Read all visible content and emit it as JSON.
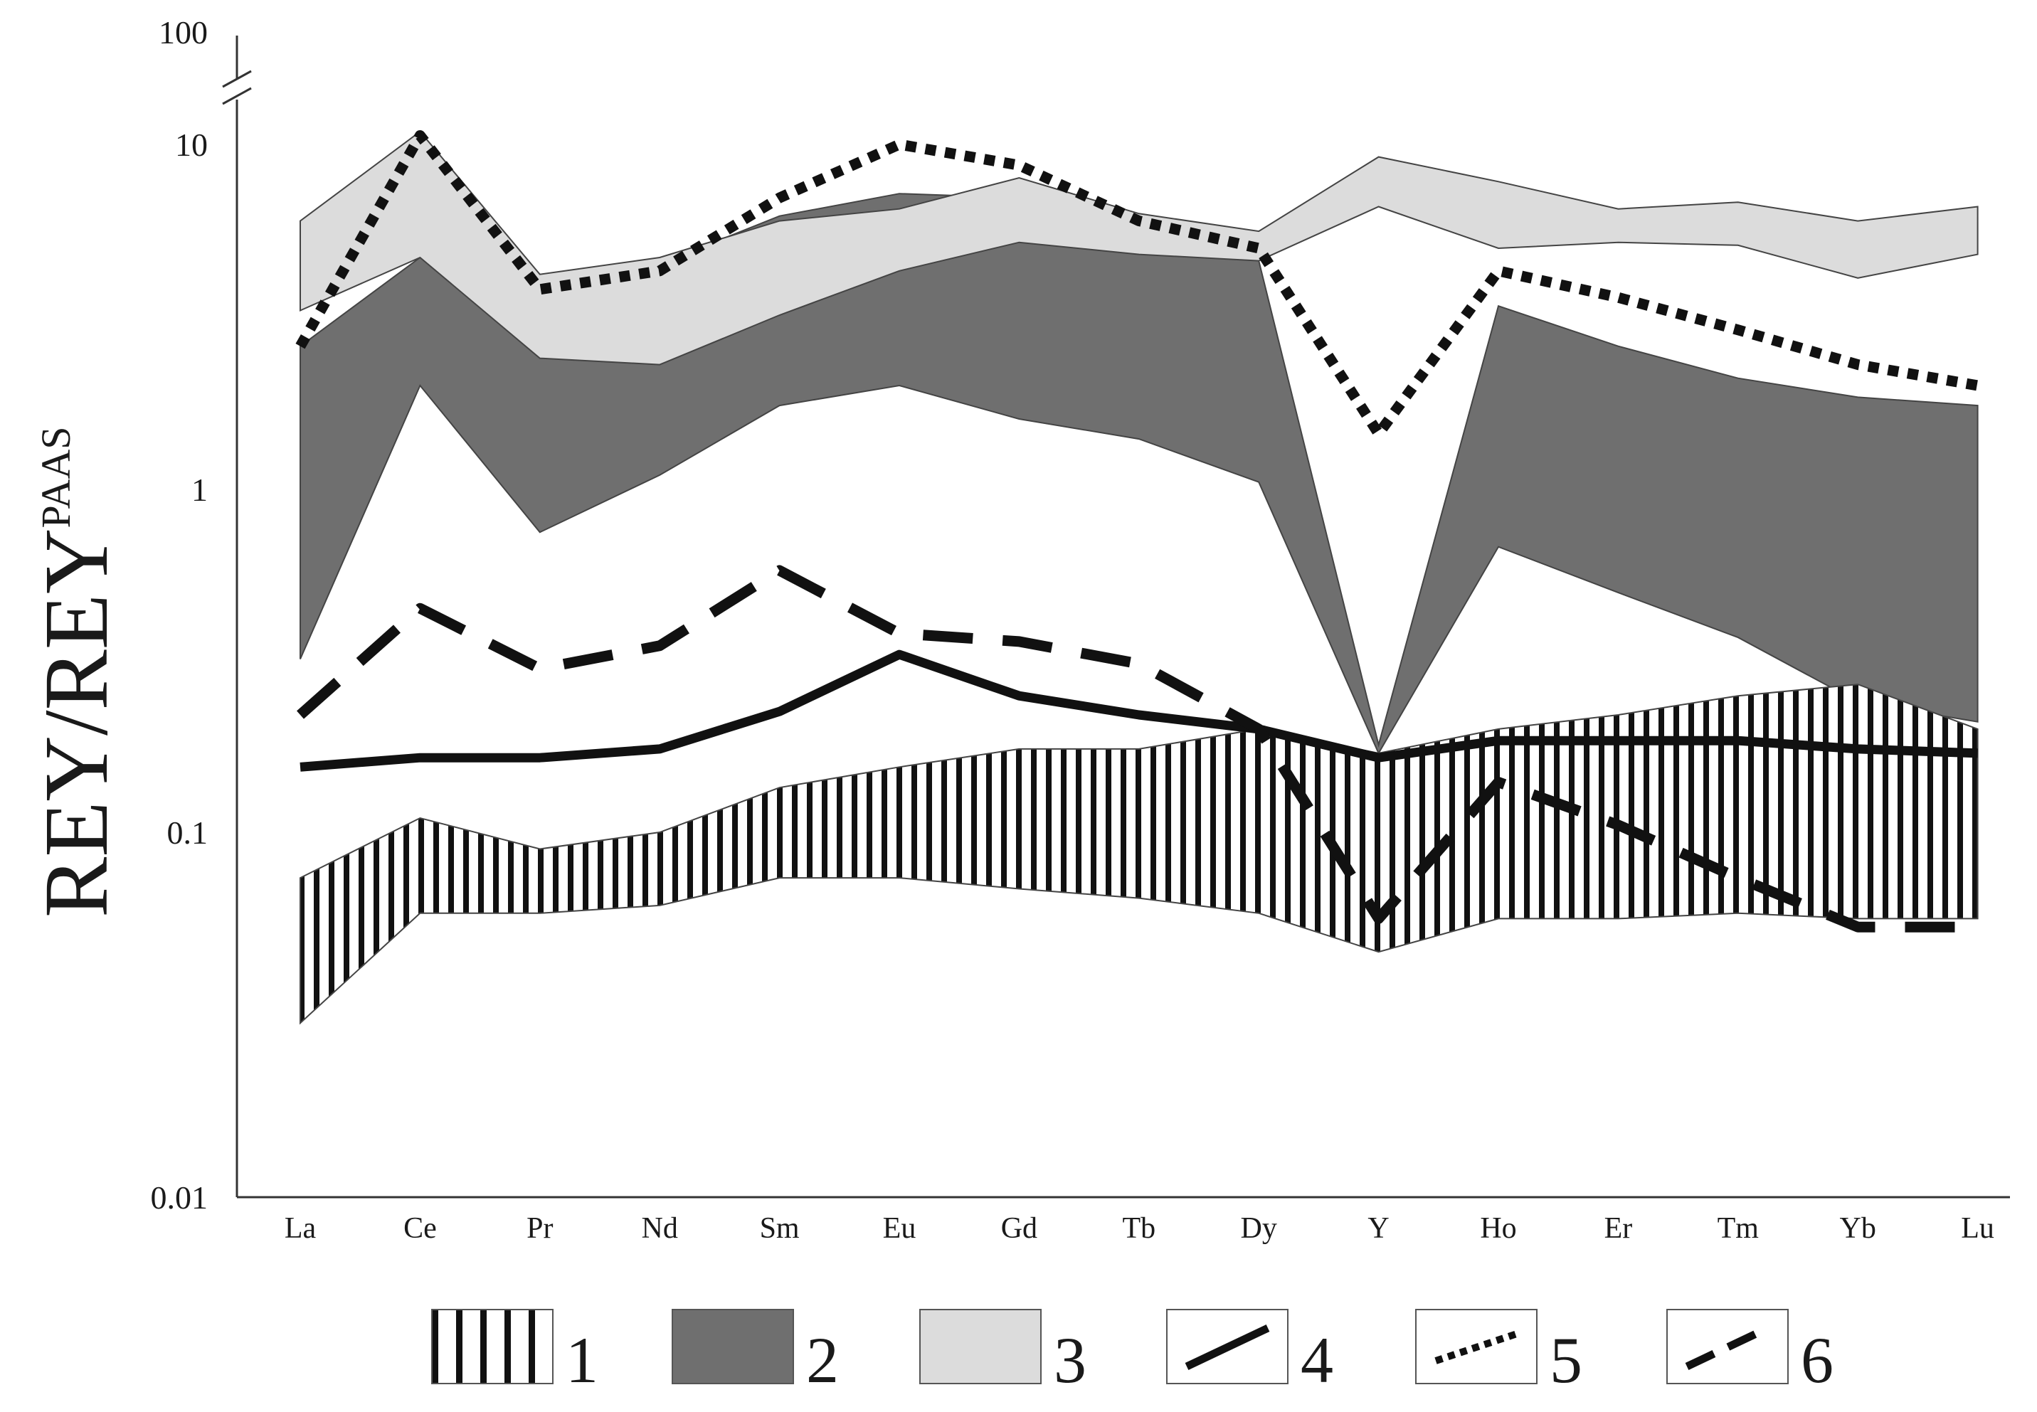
{
  "chart_data": {
    "type": "area",
    "scale": "log",
    "ylabel": "REY/REY",
    "ylabel_sup": "PAAS",
    "ylim": [
      0.01,
      100
    ],
    "yticks": [
      {
        "value": 0.01,
        "label": "0.01"
      },
      {
        "value": 0.1,
        "label": "0.1"
      },
      {
        "value": 1,
        "label": "1"
      },
      {
        "value": 10,
        "label": "10"
      },
      {
        "value": 100,
        "label": "100"
      }
    ],
    "axis_break": "between 10 and 100",
    "categories": [
      "La",
      "Ce",
      "Pr",
      "Nd",
      "Sm",
      "Eu",
      "Gd",
      "Tb",
      "Dy",
      "Y",
      "Ho",
      "Er",
      "Tm",
      "Yb",
      "Lu"
    ],
    "grid": false,
    "legend_position": "bottom",
    "bands": [
      {
        "name": "1",
        "fill": "hatched",
        "upper": [
          0.075,
          0.11,
          0.09,
          0.1,
          0.135,
          0.155,
          0.175,
          0.175,
          0.2,
          0.17,
          0.2,
          0.22,
          0.25,
          0.27,
          0.2
        ],
        "lower": [
          0.03,
          0.06,
          0.06,
          0.063,
          0.075,
          0.075,
          0.07,
          0.066,
          0.06,
          0.047,
          0.058,
          0.058,
          0.06,
          0.058,
          0.058
        ]
      },
      {
        "name": "2",
        "fill": "#6f6f6f",
        "upper": [
          2.6,
          4.7,
          4.2,
          4.5,
          6.2,
          7.2,
          7.0,
          5.9,
          4.6,
          0.18,
          3.4,
          2.6,
          2.1,
          1.85,
          1.75
        ],
        "lower": [
          0.32,
          2.0,
          0.75,
          1.1,
          1.75,
          2.0,
          1.6,
          1.4,
          1.05,
          0.17,
          0.68,
          0.5,
          0.37,
          0.24,
          0.21
        ]
      },
      {
        "name": "3",
        "fill": "#dcdcdc",
        "upper": [
          6.0,
          13.0,
          4.2,
          4.7,
          6.0,
          6.5,
          8.0,
          6.3,
          5.6,
          9.2,
          7.8,
          6.5,
          6.8,
          6.0,
          6.6
        ],
        "lower": [
          3.3,
          4.7,
          2.4,
          2.3,
          3.2,
          4.3,
          5.2,
          4.8,
          4.6,
          6.6,
          5.0,
          5.2,
          5.1,
          4.1,
          4.8
        ]
      }
    ],
    "series": [
      {
        "name": "4",
        "style": "solid",
        "color": "#111111",
        "values": [
          0.155,
          0.165,
          0.165,
          0.175,
          0.225,
          0.33,
          0.25,
          0.22,
          0.2,
          0.165,
          0.185,
          0.185,
          0.185,
          0.175,
          0.17
        ]
      },
      {
        "name": "5",
        "style": "dotted",
        "color": "#111111",
        "values": [
          2.6,
          12.0,
          3.8,
          4.3,
          7.0,
          10.0,
          8.7,
          6.0,
          5.0,
          1.45,
          4.3,
          3.6,
          2.9,
          2.3,
          2.0
        ]
      },
      {
        "name": "6",
        "style": "dashed",
        "color": "#111111",
        "values": [
          0.22,
          0.45,
          0.3,
          0.35,
          0.58,
          0.38,
          0.36,
          0.31,
          0.2,
          0.058,
          0.14,
          0.105,
          0.075,
          0.055,
          0.055
        ]
      }
    ],
    "legend": [
      {
        "label": "1",
        "swatch": "hatched"
      },
      {
        "label": "2",
        "swatch": "dark-gray-fill"
      },
      {
        "label": "3",
        "swatch": "light-gray-fill"
      },
      {
        "label": "4",
        "swatch": "solid-line"
      },
      {
        "label": "5",
        "swatch": "dotted-line"
      },
      {
        "label": "6",
        "swatch": "dashed-line"
      }
    ]
  },
  "colors": {
    "axis": "#333333",
    "band1_hatch": "#111111",
    "band2": "#6f6f6f",
    "band3": "#dcdcdc",
    "line": "#111111"
  }
}
